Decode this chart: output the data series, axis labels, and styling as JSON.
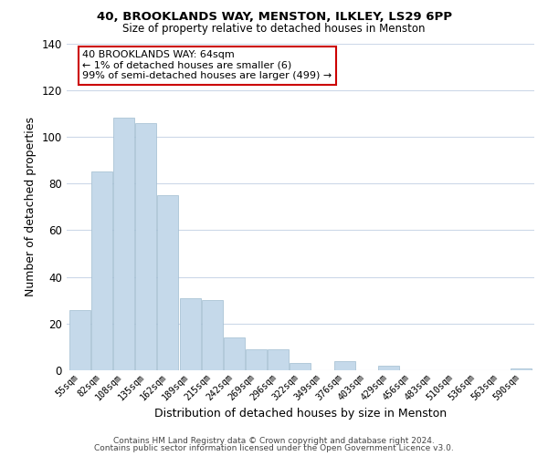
{
  "title": "40, BROOKLANDS WAY, MENSTON, ILKLEY, LS29 6PP",
  "subtitle": "Size of property relative to detached houses in Menston",
  "xlabel": "Distribution of detached houses by size in Menston",
  "ylabel": "Number of detached properties",
  "bar_color": "#c5d9ea",
  "highlight_bar_color": "#c5d9ea",
  "highlight_bar_edge_color": "#cc0000",
  "categories": [
    "55sqm",
    "82sqm",
    "108sqm",
    "135sqm",
    "162sqm",
    "189sqm",
    "215sqm",
    "242sqm",
    "269sqm",
    "296sqm",
    "322sqm",
    "349sqm",
    "376sqm",
    "403sqm",
    "429sqm",
    "456sqm",
    "483sqm",
    "510sqm",
    "536sqm",
    "563sqm",
    "590sqm"
  ],
  "values": [
    26,
    85,
    108,
    106,
    75,
    31,
    30,
    14,
    9,
    9,
    3,
    0,
    4,
    0,
    2,
    0,
    0,
    0,
    0,
    0,
    1
  ],
  "highlight_index": 0,
  "ylim": [
    0,
    140
  ],
  "yticks": [
    0,
    20,
    40,
    60,
    80,
    100,
    120,
    140
  ],
  "annotation_text": "40 BROOKLANDS WAY: 64sqm\n← 1% of detached houses are smaller (6)\n99% of semi-detached houses are larger (499) →",
  "annotation_box_color": "#ffffff",
  "annotation_border_color": "#cc0000",
  "footer_line1": "Contains HM Land Registry data © Crown copyright and database right 2024.",
  "footer_line2": "Contains public sector information licensed under the Open Government Licence v3.0.",
  "background_color": "#ffffff",
  "grid_color": "#ccd8e8"
}
